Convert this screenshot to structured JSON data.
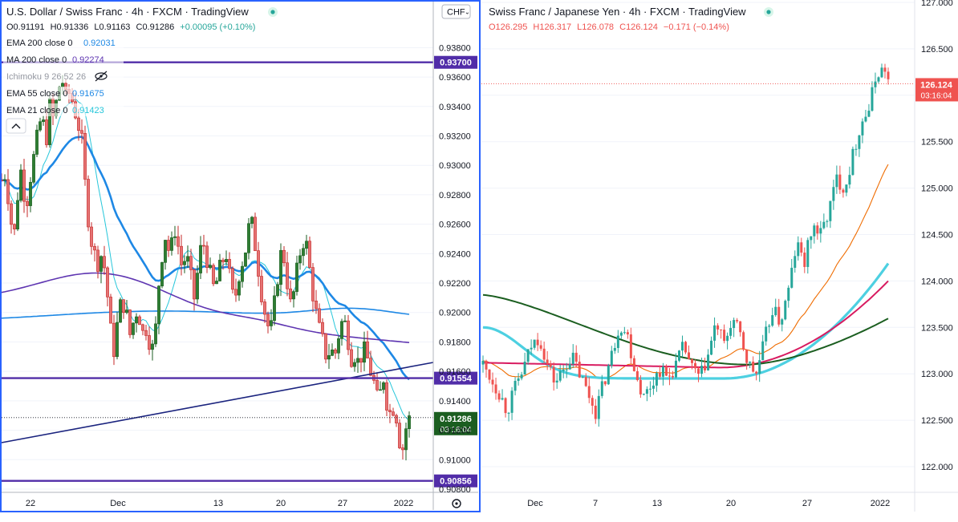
{
  "chart_data": [
    {
      "type": "candlestick",
      "title": "U.S. Dollar / Swiss Franc · 4h · FXCM · TradingView",
      "ohlc": {
        "o": "O0.91191",
        "h": "H0.91336",
        "l": "L0.91163",
        "c": "C0.91286",
        "chg": "+0.00095 (+0.10%)"
      },
      "currency": "CHF",
      "ylim": [
        0.908,
        0.9396
      ],
      "y_ticks": [
        "0.93800",
        "0.93600",
        "0.93400",
        "0.93200",
        "0.93000",
        "0.92800",
        "0.92600",
        "0.92400",
        "0.92200",
        "0.92000",
        "0.91800",
        "0.91600",
        "0.91400",
        "0.91200",
        "0.91000",
        "0.90800"
      ],
      "x_ticks": [
        "22",
        "Dec",
        "13",
        "20",
        "27",
        "2022"
      ],
      "indicators": [
        {
          "label": "EMA 200 close 0",
          "value": "0.92031",
          "color": "#1e88e5"
        },
        {
          "label": "MA 200 close 0",
          "value": "0.92274",
          "color": "#5e35b1"
        },
        {
          "label": "Ichimoku 9 26 52 26",
          "value": "",
          "color": "#9598a1"
        },
        {
          "label": "EMA 55 close 0",
          "value": "0.91675",
          "color": "#1e88e5"
        },
        {
          "label": "EMA 21 close 0",
          "value": "0.91423",
          "color": "#26c6da"
        }
      ],
      "levels": [
        {
          "value": 0.937,
          "label": "0.93700"
        },
        {
          "value": 0.91554,
          "label": "0.91554"
        },
        {
          "value": 0.90856,
          "label": "0.90856"
        }
      ],
      "last_price": {
        "value": 0.91286,
        "label": "0.91286",
        "countdown": "03:16:04"
      },
      "price_series": [
        [
          0,
          0.929
        ],
        [
          5,
          0.9295
        ],
        [
          10,
          0.927
        ],
        [
          15,
          0.9248
        ],
        [
          20,
          0.928
        ],
        [
          25,
          0.93
        ],
        [
          30,
          0.927
        ],
        [
          35,
          0.929
        ],
        [
          40,
          0.9305
        ],
        [
          45,
          0.932
        ],
        [
          50,
          0.9335
        ],
        [
          55,
          0.9315
        ],
        [
          60,
          0.934
        ],
        [
          65,
          0.933
        ],
        [
          70,
          0.935
        ],
        [
          75,
          0.936
        ],
        [
          80,
          0.9345
        ],
        [
          85,
          0.935
        ],
        [
          90,
          0.934
        ],
        [
          95,
          0.933
        ],
        [
          100,
          0.9315
        ],
        [
          105,
          0.928
        ],
        [
          110,
          0.9255
        ],
        [
          115,
          0.924
        ],
        [
          120,
          0.9235
        ],
        [
          125,
          0.924
        ],
        [
          130,
          0.9225
        ],
        [
          135,
          0.919
        ],
        [
          140,
          0.9175
        ],
        [
          145,
          0.9195
        ],
        [
          150,
          0.921
        ],
        [
          155,
          0.92
        ],
        [
          160,
          0.9185
        ],
        [
          165,
          0.9195
        ],
        [
          170,
          0.9205
        ],
        [
          175,
          0.9185
        ],
        [
          180,
          0.919
        ],
        [
          185,
          0.918
        ],
        [
          190,
          0.9172
        ],
        [
          195,
          0.9215
        ],
        [
          200,
          0.924
        ],
        [
          205,
          0.9255
        ],
        [
          210,
          0.9235
        ],
        [
          215,
          0.926
        ],
        [
          220,
          0.9245
        ],
        [
          225,
          0.923
        ],
        [
          230,
          0.924
        ],
        [
          235,
          0.9225
        ],
        [
          240,
          0.921
        ],
        [
          245,
          0.923
        ],
        [
          250,
          0.925
        ],
        [
          255,
          0.924
        ],
        [
          260,
          0.9225
        ],
        [
          265,
          0.9215
        ],
        [
          270,
          0.9225
        ],
        [
          275,
          0.9235
        ],
        [
          280,
          0.924
        ],
        [
          285,
          0.922
        ],
        [
          290,
          0.9205
        ],
        [
          295,
          0.9225
        ],
        [
          300,
          0.9235
        ],
        [
          305,
          0.9245
        ],
        [
          310,
          0.9265
        ],
        [
          315,
          0.925
        ],
        [
          320,
          0.923
        ],
        [
          325,
          0.921
        ],
        [
          330,
          0.9195
        ],
        [
          335,
          0.9185
        ],
        [
          340,
          0.9205
        ],
        [
          345,
          0.923
        ],
        [
          350,
          0.9245
        ],
        [
          355,
          0.9225
        ],
        [
          360,
          0.9205
        ],
        [
          365,
          0.9215
        ],
        [
          370,
          0.9235
        ],
        [
          375,
          0.925
        ],
        [
          380,
          0.9245
        ],
        [
          385,
          0.9225
        ],
        [
          390,
          0.9205
        ],
        [
          395,
          0.919
        ],
        [
          400,
          0.918
        ],
        [
          405,
          0.917
        ],
        [
          410,
          0.9175
        ],
        [
          415,
          0.917
        ],
        [
          420,
          0.9185
        ],
        [
          425,
          0.9195
        ],
        [
          430,
          0.919
        ],
        [
          435,
          0.917
        ],
        [
          440,
          0.9172
        ],
        [
          445,
          0.9165
        ],
        [
          450,
          0.9175
        ],
        [
          455,
          0.917
        ],
        [
          460,
          0.916
        ],
        [
          465,
          0.915
        ],
        [
          470,
          0.9135
        ],
        [
          475,
          0.916
        ],
        [
          480,
          0.914
        ],
        [
          485,
          0.913
        ],
        [
          490,
          0.914
        ],
        [
          495,
          0.9115
        ],
        [
          500,
          0.9108
        ],
        [
          505,
          0.9125
        ],
        [
          510,
          0.9129
        ]
      ]
    },
    {
      "type": "candlestick",
      "title": "Swiss Franc / Japanese Yen · 4h · FXCM · TradingView",
      "ohlc": {
        "o": "O126.295",
        "h": "H126.317",
        "l": "L126.078",
        "c": "C126.124",
        "chg": "−0.171 (−0.14%)"
      },
      "ylim": [
        121.8,
        127.0
      ],
      "y_ticks": [
        "127.000",
        "126.500",
        "126.000",
        "125.500",
        "125.000",
        "124.500",
        "124.000",
        "123.500",
        "123.000",
        "122.500",
        "122.000"
      ],
      "x_ticks": [
        "Dec",
        "7",
        "13",
        "20",
        "27",
        "2022"
      ],
      "last_price": {
        "value": 126.124,
        "label": "126.124",
        "countdown": "03:16:04"
      },
      "price_series": [
        [
          0,
          123.1
        ],
        [
          10,
          122.95
        ],
        [
          20,
          122.8
        ],
        [
          30,
          122.6
        ],
        [
          40,
          122.85
        ],
        [
          50,
          123.05
        ],
        [
          60,
          123.3
        ],
        [
          70,
          123.4
        ],
        [
          80,
          123.1
        ],
        [
          90,
          122.9
        ],
        [
          100,
          123.05
        ],
        [
          110,
          123.2
        ],
        [
          120,
          123.0
        ],
        [
          130,
          122.8
        ],
        [
          140,
          122.6
        ],
        [
          150,
          122.9
        ],
        [
          160,
          123.2
        ],
        [
          170,
          123.55
        ],
        [
          180,
          123.4
        ],
        [
          190,
          123.0
        ],
        [
          200,
          122.75
        ],
        [
          210,
          122.9
        ],
        [
          220,
          123.05
        ],
        [
          230,
          122.95
        ],
        [
          240,
          123.1
        ],
        [
          250,
          123.3
        ],
        [
          260,
          123.05
        ],
        [
          270,
          122.95
        ],
        [
          280,
          123.2
        ],
        [
          290,
          123.55
        ],
        [
          300,
          123.3
        ],
        [
          310,
          123.6
        ],
        [
          320,
          123.4
        ],
        [
          330,
          123.1
        ],
        [
          340,
          123.0
        ],
        [
          350,
          123.35
        ],
        [
          360,
          123.7
        ],
        [
          370,
          123.55
        ],
        [
          380,
          123.9
        ],
        [
          390,
          124.4
        ],
        [
          400,
          124.2
        ],
        [
          410,
          124.6
        ],
        [
          420,
          124.5
        ],
        [
          430,
          124.75
        ],
        [
          440,
          125.1
        ],
        [
          450,
          125.0
        ],
        [
          460,
          125.35
        ],
        [
          470,
          125.7
        ],
        [
          480,
          125.85
        ],
        [
          490,
          126.25
        ],
        [
          500,
          126.28
        ],
        [
          505,
          126.12
        ]
      ]
    }
  ]
}
